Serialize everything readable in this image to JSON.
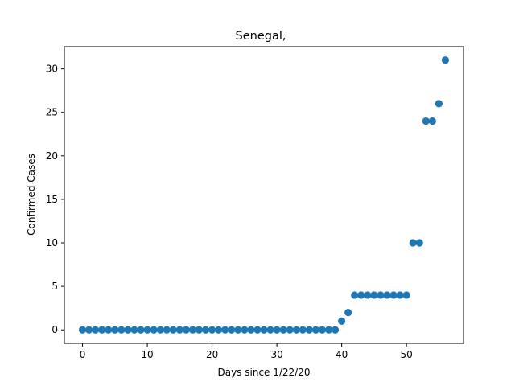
{
  "chart_data": {
    "type": "scatter",
    "title": "Senegal,",
    "xlabel": "Days since 1/22/20",
    "ylabel": "Confirmed Cases",
    "xlim": [
      -2.8,
      58.8
    ],
    "ylim": [
      -1.55,
      32.55
    ],
    "xticks": [
      0,
      10,
      20,
      30,
      40,
      50
    ],
    "yticks": [
      0,
      5,
      10,
      15,
      20,
      25,
      30
    ],
    "grid": false,
    "marker_color": "#1f77b4",
    "series": [
      {
        "x": [
          0,
          1,
          2,
          3,
          4,
          5,
          6,
          7,
          8,
          9,
          10,
          11,
          12,
          13,
          14,
          15,
          16,
          17,
          18,
          19,
          20,
          21,
          22,
          23,
          24,
          25,
          26,
          27,
          28,
          29,
          30,
          31,
          32,
          33,
          34,
          35,
          36,
          37,
          38,
          39,
          40,
          41,
          42,
          43,
          44,
          45,
          46,
          47,
          48,
          49,
          50,
          51,
          52,
          53,
          54,
          55,
          56
        ],
        "y": [
          0,
          0,
          0,
          0,
          0,
          0,
          0,
          0,
          0,
          0,
          0,
          0,
          0,
          0,
          0,
          0,
          0,
          0,
          0,
          0,
          0,
          0,
          0,
          0,
          0,
          0,
          0,
          0,
          0,
          0,
          0,
          0,
          0,
          0,
          0,
          0,
          0,
          0,
          0,
          0,
          1,
          2,
          4,
          4,
          4,
          4,
          4,
          4,
          4,
          4,
          4,
          10,
          10,
          24,
          24,
          26,
          31
        ]
      }
    ]
  }
}
